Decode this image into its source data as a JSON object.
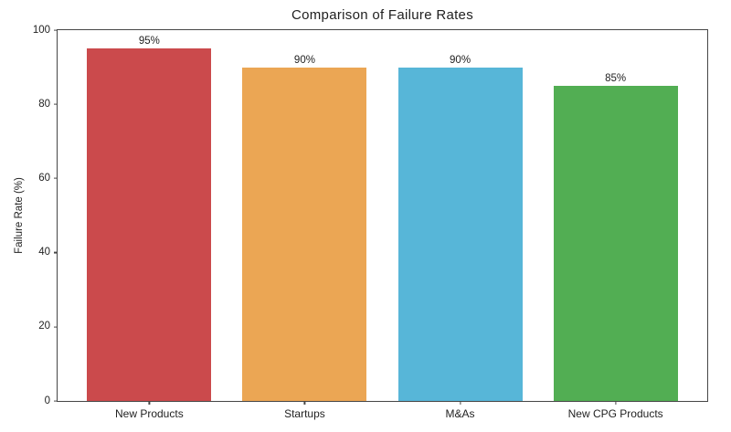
{
  "chart_data": {
    "type": "bar",
    "title": "Comparison of Failure Rates",
    "xlabel": "",
    "ylabel": "Failure Rate (%)",
    "categories": [
      "New Products",
      "Startups",
      "M&As",
      "New CPG Products"
    ],
    "values": [
      95,
      90,
      90,
      85
    ],
    "bar_labels": [
      "95%",
      "90%",
      "90%",
      "85%"
    ],
    "bar_colors": [
      "#cb4a4c",
      "#eba654",
      "#57b6d8",
      "#52ae53"
    ],
    "ylim": [
      0,
      100
    ],
    "yticks": [
      0,
      20,
      40,
      60,
      80,
      100
    ],
    "grid": false,
    "legend": null,
    "axis_color": "#464646",
    "text_color": "#1f1f1f"
  }
}
